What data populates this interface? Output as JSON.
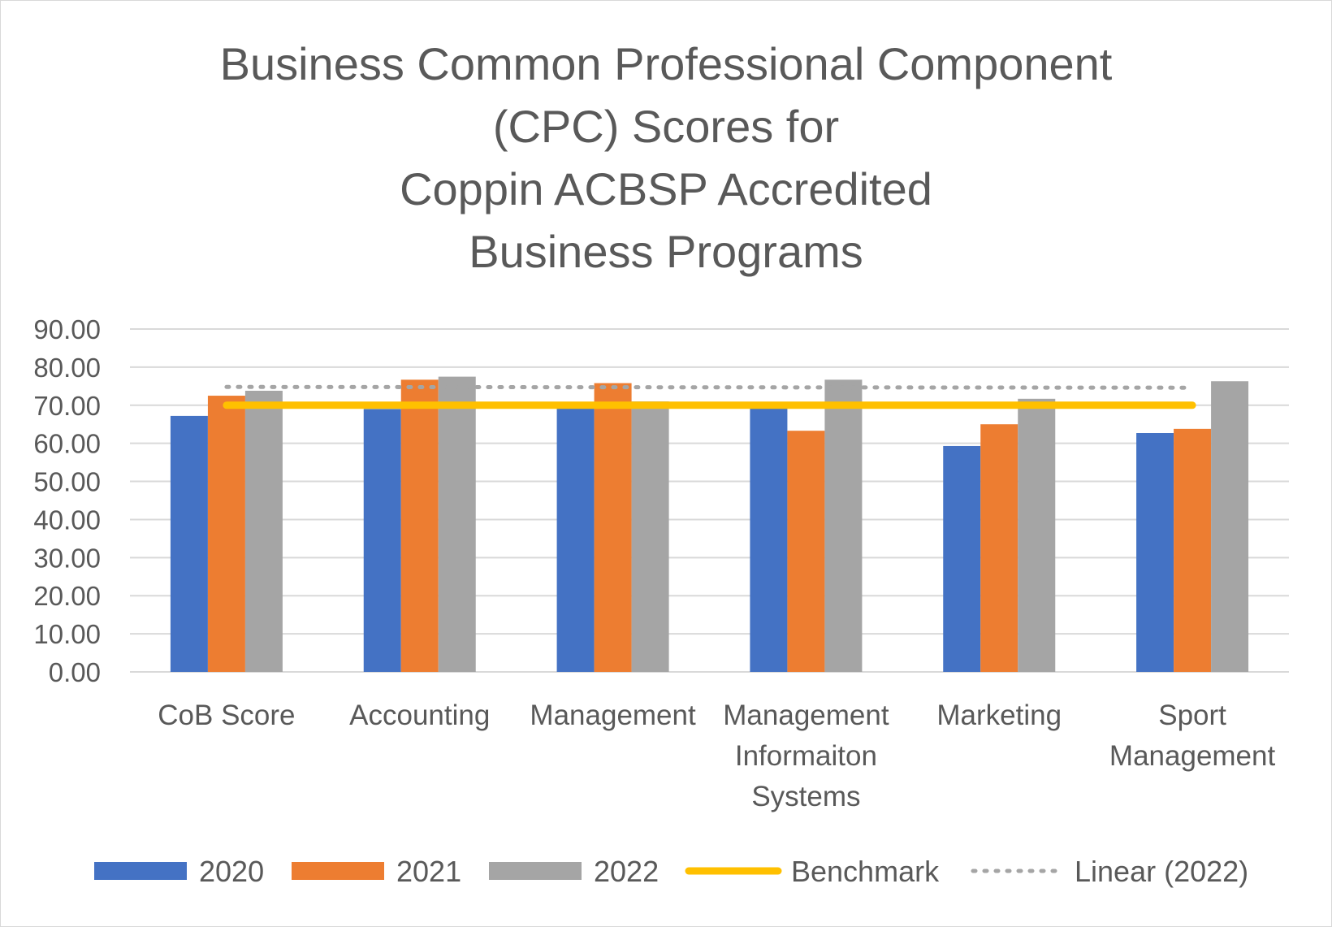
{
  "chart_data": {
    "type": "bar",
    "title": [
      "Business Common Professional Component",
      "(CPC) Scores for",
      "Coppin ACBSP Accredited",
      "Business Programs"
    ],
    "categories": [
      [
        "CoB Score"
      ],
      [
        "Accounting"
      ],
      [
        "Management"
      ],
      [
        "Management",
        "Informaiton",
        "Systems"
      ],
      [
        "Marketing"
      ],
      [
        "Sport",
        "Management"
      ]
    ],
    "series": [
      {
        "name": "2020",
        "color": "#4472c4",
        "values": [
          67.2,
          69.0,
          69.5,
          69.5,
          59.3,
          62.7
        ]
      },
      {
        "name": "2021",
        "color": "#ed7d31",
        "values": [
          72.5,
          76.7,
          75.8,
          63.3,
          65.0,
          63.8
        ]
      },
      {
        "name": "2022",
        "color": "#a5a5a5",
        "values": [
          73.8,
          77.5,
          71.0,
          76.7,
          71.7,
          76.3
        ]
      }
    ],
    "benchmark": {
      "name": "Benchmark",
      "color": "#ffc000",
      "value": 70.0
    },
    "trendline": {
      "name": "Linear (2022)",
      "color": "#a5a5a5",
      "start": 74.8,
      "end": 74.6
    },
    "ylim": [
      0,
      90
    ],
    "yticks": [
      "0.00",
      "10.00",
      "20.00",
      "30.00",
      "40.00",
      "50.00",
      "60.00",
      "70.00",
      "80.00",
      "90.00"
    ],
    "xlabel": "",
    "ylabel": "",
    "grid": true,
    "legend_position": "bottom"
  }
}
